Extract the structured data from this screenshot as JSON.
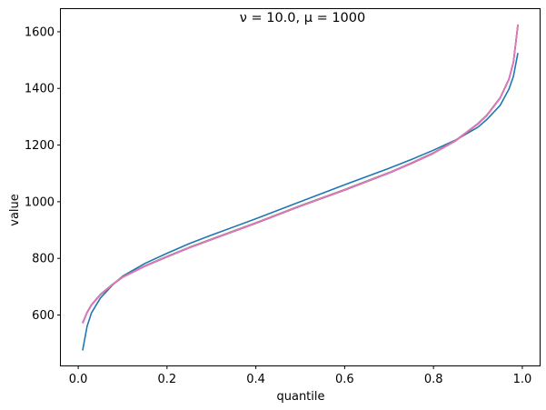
{
  "chart_data": {
    "type": "line",
    "title": "ν = 10.0, μ = 1000",
    "xlabel": "quantile",
    "ylabel": "value",
    "xlim": [
      -0.039,
      1.039
    ],
    "ylim": [
      422,
      1680
    ],
    "xticks": [
      0.0,
      0.2,
      0.4,
      0.6,
      0.8,
      1.0
    ],
    "xtick_labels": [
      "0.0",
      "0.2",
      "0.4",
      "0.6",
      "0.8",
      "1.0"
    ],
    "yticks": [
      600,
      800,
      1000,
      1200,
      1400,
      1600
    ],
    "ytick_labels": [
      "600",
      "800",
      "1000",
      "1200",
      "1400",
      "1600"
    ],
    "grid": false,
    "series": [
      {
        "color": "#1f77b4",
        "x": [
          0.01,
          0.02,
          0.03,
          0.05,
          0.08,
          0.1,
          0.15,
          0.2,
          0.25,
          0.3,
          0.4,
          0.5,
          0.6,
          0.7,
          0.75,
          0.8,
          0.85,
          0.9,
          0.92,
          0.95,
          0.97,
          0.98,
          0.99
        ],
        "y": [
          475,
          560,
          608,
          660,
          710,
          737,
          782,
          818,
          852,
          882,
          940,
          1000,
          1060,
          1118,
          1149,
          1182,
          1218,
          1263,
          1290,
          1340,
          1398,
          1443,
          1525
        ]
      },
      {
        "color": "#ff7f0e",
        "x": [
          0.01,
          0.02,
          0.03,
          0.05,
          0.08,
          0.1,
          0.15,
          0.2,
          0.25,
          0.3,
          0.4,
          0.5,
          0.6,
          0.7,
          0.75,
          0.8,
          0.85,
          0.9,
          0.92,
          0.95,
          0.97,
          0.98,
          0.99
        ],
        "y": [
          572,
          609,
          636,
          672,
          711,
          734,
          773,
          806,
          838,
          867,
          925,
          985,
          1042,
          1102,
          1136,
          1172,
          1216,
          1275,
          1305,
          1366,
          1433,
          1493,
          1623
        ]
      },
      {
        "color": "#2ca02c",
        "x": [
          0.01,
          0.02,
          0.03,
          0.05,
          0.08,
          0.1,
          0.15,
          0.2,
          0.25,
          0.3,
          0.4,
          0.5,
          0.6,
          0.7,
          0.75,
          0.8,
          0.85,
          0.9,
          0.92,
          0.95,
          0.97,
          0.98,
          0.99
        ],
        "y": [
          573,
          610,
          637,
          673,
          712,
          735,
          774,
          807,
          839,
          868,
          926,
          986,
          1043,
          1103,
          1137,
          1173,
          1217,
          1276,
          1306,
          1367,
          1434,
          1494,
          1624
        ]
      },
      {
        "color": "#d62728",
        "x": [
          0.01,
          0.02,
          0.03,
          0.05,
          0.08,
          0.1,
          0.15,
          0.2,
          0.25,
          0.3,
          0.4,
          0.5,
          0.6,
          0.7,
          0.75,
          0.8,
          0.85,
          0.9,
          0.92,
          0.95,
          0.97,
          0.98,
          0.99
        ],
        "y": [
          571,
          608,
          635,
          671,
          710,
          733,
          772,
          805,
          837,
          866,
          924,
          984,
          1041,
          1101,
          1135,
          1171,
          1215,
          1274,
          1304,
          1365,
          1432,
          1492,
          1622
        ]
      },
      {
        "color": "#9467bd",
        "x": [
          0.01,
          0.02,
          0.03,
          0.05,
          0.08,
          0.1,
          0.15,
          0.2,
          0.25,
          0.3,
          0.4,
          0.5,
          0.6,
          0.7,
          0.75,
          0.8,
          0.85,
          0.9,
          0.92,
          0.95,
          0.97,
          0.98,
          0.99
        ],
        "y": [
          572,
          609,
          636,
          672,
          711,
          734,
          773,
          806,
          838,
          867,
          925,
          985,
          1042,
          1102,
          1136,
          1172,
          1216,
          1275,
          1305,
          1366,
          1433,
          1493,
          1625
        ]
      },
      {
        "color": "#e377c2",
        "x": [
          0.01,
          0.02,
          0.03,
          0.05,
          0.08,
          0.1,
          0.15,
          0.2,
          0.25,
          0.3,
          0.4,
          0.5,
          0.6,
          0.7,
          0.75,
          0.8,
          0.85,
          0.9,
          0.92,
          0.95,
          0.97,
          0.98,
          0.99
        ],
        "y": [
          572,
          609,
          636,
          672,
          711,
          734,
          773,
          806,
          838,
          867,
          925,
          985,
          1042,
          1102,
          1136,
          1172,
          1216,
          1275,
          1305,
          1366,
          1433,
          1493,
          1626
        ]
      }
    ]
  }
}
